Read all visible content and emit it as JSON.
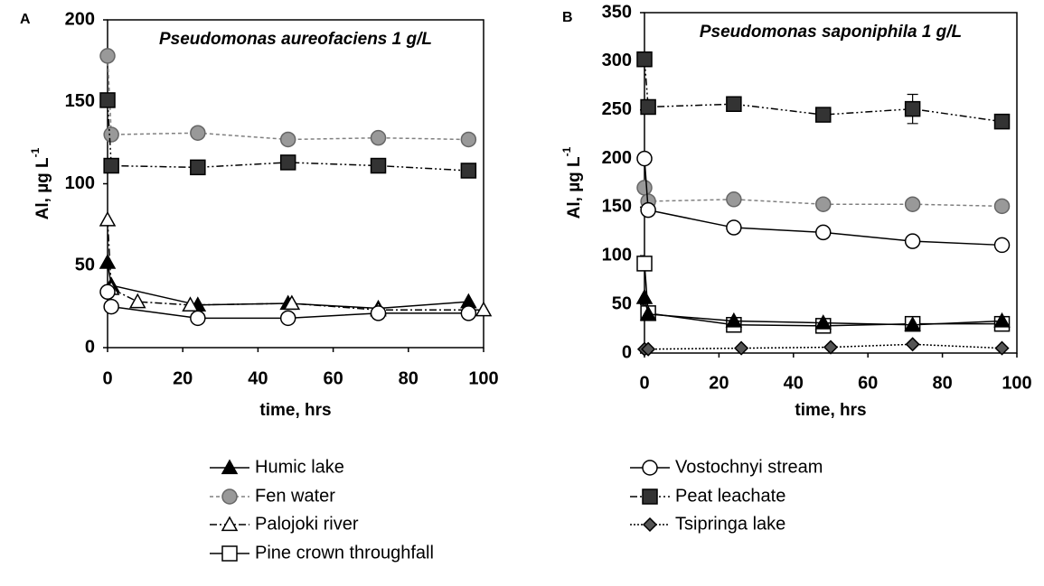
{
  "chart_data": [
    {
      "type": "line",
      "panel_label": "A",
      "title": "Pseudomonas aureofaciens  1 g/L",
      "xlabel": "time, hrs",
      "ylabel": "Al, µg L",
      "ylabel_sup": "-1",
      "xlim": [
        0,
        100
      ],
      "xticks": [
        0,
        20,
        40,
        60,
        80,
        100
      ],
      "ylim": [
        0,
        200
      ],
      "yticks": [
        0,
        50,
        100,
        150,
        200
      ],
      "series": [
        {
          "name": "Humic lake",
          "color": "#000000",
          "marker": "triangle",
          "marker_fill": "#000000",
          "dash": "none",
          "x": [
            0,
            1,
            24,
            48,
            72,
            96
          ],
          "values": [
            52,
            38,
            26,
            27,
            24,
            28
          ]
        },
        {
          "name": "Fen water",
          "color": "#808080",
          "marker": "circle",
          "marker_fill": "#999999",
          "dash": "4,3",
          "x": [
            0,
            1,
            24,
            48,
            72,
            96
          ],
          "values": [
            178,
            130,
            131,
            127,
            128,
            127
          ]
        },
        {
          "name": "Palojoki river",
          "color": "#000000",
          "marker": "triangle",
          "marker_fill": "#ffffff",
          "dash": "8,3,2,3",
          "x": [
            0,
            1,
            8,
            22,
            49,
            72,
            100
          ],
          "values": [
            78,
            36,
            28,
            26,
            27,
            23,
            23
          ]
        },
        {
          "name": "Vostochnyi stream",
          "color": "#000000",
          "marker": "circle",
          "marker_fill": "#ffffff",
          "dash": "none",
          "x": [
            0,
            1,
            24,
            48,
            72,
            96
          ],
          "values": [
            34,
            25,
            18,
            18,
            21,
            21
          ]
        },
        {
          "name": "Peat leachate",
          "color": "#000000",
          "marker": "square",
          "marker_fill": "#333333",
          "dash": "8,3,2,3,2,3",
          "x": [
            0,
            1,
            24,
            48,
            72,
            96
          ],
          "values": [
            151,
            111,
            110,
            113,
            111,
            108
          ]
        }
      ]
    },
    {
      "type": "line",
      "panel_label": "B",
      "title": "Pseudomonas saponiphila 1 g/L",
      "xlabel": "time, hrs",
      "ylabel": "Al, µg L",
      "ylabel_sup": "-1",
      "xlim": [
        0,
        100
      ],
      "xticks": [
        0,
        20,
        40,
        60,
        80,
        100
      ],
      "ylim": [
        0,
        350
      ],
      "yticks": [
        0,
        50,
        100,
        150,
        200,
        250,
        300,
        350
      ],
      "series": [
        {
          "name": "Peat leachate",
          "color": "#000000",
          "marker": "square",
          "marker_fill": "#333333",
          "dash": "8,3,2,3,2,3",
          "x": [
            0,
            1,
            24,
            48,
            72,
            96
          ],
          "values": [
            302,
            253,
            256,
            245,
            251,
            238
          ],
          "errors": [
            null,
            null,
            null,
            null,
            15,
            null
          ]
        },
        {
          "name": "Fen water",
          "color": "#808080",
          "marker": "circle",
          "marker_fill": "#999999",
          "dash": "4,3",
          "x": [
            0,
            1,
            24,
            48,
            72,
            96
          ],
          "values": [
            170,
            156,
            158,
            153,
            153,
            151
          ]
        },
        {
          "name": "Vostochnyi stream",
          "color": "#000000",
          "marker": "circle",
          "marker_fill": "#ffffff",
          "dash": "none",
          "x": [
            0,
            1,
            24,
            48,
            72,
            96
          ],
          "values": [
            200,
            147,
            129,
            124,
            115,
            111
          ]
        },
        {
          "name": "Pine crown throughfall",
          "color": "#000000",
          "marker": "square",
          "marker_fill": "#ffffff",
          "dash": "none",
          "x": [
            0,
            1,
            24,
            48,
            72,
            96
          ],
          "values": [
            92,
            41,
            29,
            28,
            30,
            30
          ]
        },
        {
          "name": "Humic lake",
          "color": "#000000",
          "marker": "triangle",
          "marker_fill": "#000000",
          "dash": "none",
          "x": [
            0,
            1,
            24,
            48,
            72,
            96
          ],
          "values": [
            57,
            40,
            33,
            31,
            29,
            33
          ]
        },
        {
          "name": "Tsipringa lake",
          "color": "#000000",
          "marker": "diamond",
          "marker_fill": "#555555",
          "dash": "2,2",
          "x": [
            0,
            1,
            26,
            50,
            72,
            96
          ],
          "values": [
            4,
            4,
            5,
            6,
            9,
            5
          ]
        }
      ]
    }
  ]
}
